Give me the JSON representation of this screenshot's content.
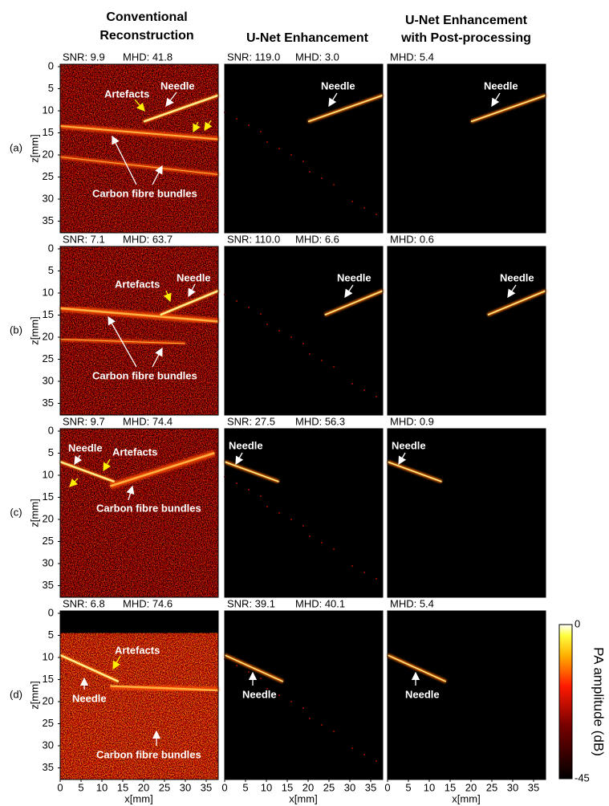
{
  "column_titles": [
    [
      "Conventional",
      "Reconstruction"
    ],
    [
      "U-Net Enhancement"
    ],
    [
      "U-Net Enhancement",
      "with Post-processing"
    ]
  ],
  "row_labels": [
    "(a)",
    "(b)",
    "(c)",
    "(d)"
  ],
  "panels": [
    [
      {
        "metrics": [
          "SNR: 9.9",
          "MHD: 41.8"
        ],
        "annotations": [
          "Needle",
          "Artefacts",
          "Carbon fibre bundles"
        ]
      },
      {
        "metrics": [
          "SNR: 119.0",
          "MHD: 3.0"
        ],
        "annotations": [
          "Needle"
        ]
      },
      {
        "metrics": [
          "MHD: 5.4"
        ],
        "annotations": [
          "Needle"
        ]
      }
    ],
    [
      {
        "metrics": [
          "SNR: 7.1",
          "MHD: 63.7"
        ],
        "annotations": [
          "Needle",
          "Artefacts",
          "Carbon fibre bundles"
        ]
      },
      {
        "metrics": [
          "SNR: 110.0",
          "MHD: 6.6"
        ],
        "annotations": [
          "Needle"
        ]
      },
      {
        "metrics": [
          "MHD: 0.6"
        ],
        "annotations": [
          "Needle"
        ]
      }
    ],
    [
      {
        "metrics": [
          "SNR: 9.7",
          "MHD: 74.4"
        ],
        "annotations": [
          "Needle",
          "Artefacts",
          "Carbon fibre bundles"
        ]
      },
      {
        "metrics": [
          "SNR: 27.5",
          "MHD: 56.3"
        ],
        "annotations": [
          "Needle"
        ]
      },
      {
        "metrics": [
          "MHD: 0.9"
        ],
        "annotations": [
          "Needle"
        ]
      }
    ],
    [
      {
        "metrics": [
          "SNR: 6.8",
          "MHD: 74.6"
        ],
        "annotations": [
          "Needle",
          "Artefacts",
          "Carbon fibre bundles"
        ]
      },
      {
        "metrics": [
          "SNR: 39.1",
          "MHD: 40.1"
        ],
        "annotations": [
          "Needle"
        ]
      },
      {
        "metrics": [
          "MHD: 5.4"
        ],
        "annotations": [
          "Needle"
        ]
      }
    ]
  ],
  "z_axis": {
    "label": "z[mm]",
    "ticks": [
      0,
      5,
      10,
      15,
      20,
      25,
      30,
      35
    ]
  },
  "x_axis": {
    "label": "x[mm]",
    "ticks": [
      0,
      5,
      10,
      15,
      20,
      25,
      30,
      35
    ]
  },
  "colorbar": {
    "label": "PA amplitude (dB)",
    "ticks": [
      0,
      -45
    ]
  }
}
